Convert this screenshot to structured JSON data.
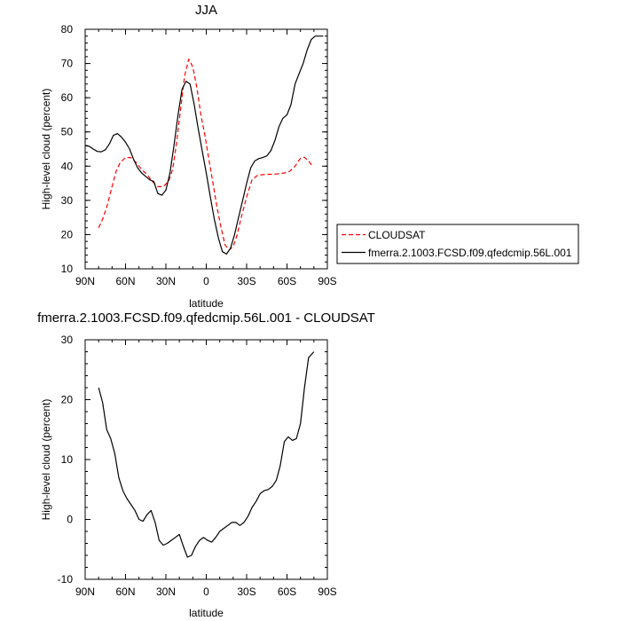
{
  "chart_data": [
    {
      "type": "line",
      "title": "JJA",
      "xlabel": "latitude",
      "ylabel": "High-level cloud (percent)",
      "xlim": [
        90,
        -90
      ],
      "ylim": [
        10,
        80
      ],
      "xticks": [
        90,
        60,
        30,
        0,
        -30,
        -60,
        -90
      ],
      "xtick_labels": [
        "90N",
        "60N",
        "30N",
        "0",
        "30S",
        "60S",
        "90S"
      ],
      "yticks": [
        10,
        20,
        30,
        40,
        50,
        60,
        70,
        80
      ],
      "ytick_labels": [
        "10",
        "20",
        "30",
        "40",
        "50",
        "60",
        "70",
        "80"
      ],
      "legend_position": "right",
      "series": [
        {
          "name": "CLOUDSAT",
          "color": "#ff0000",
          "dash": "dashed",
          "x": [
            80,
            77,
            74,
            70,
            67,
            64,
            60,
            56,
            52,
            48,
            44,
            40,
            36,
            32,
            28,
            25,
            22,
            19,
            16,
            13,
            10,
            7,
            4,
            1,
            -2,
            -5,
            -8,
            -11,
            -14,
            -17,
            -20,
            -23,
            -26,
            -30,
            -34,
            -38,
            -42,
            -46,
            -50,
            -54,
            -58,
            -62,
            -66,
            -70,
            -73,
            -76,
            -78,
            -80
          ],
          "values": [
            22,
            24.5,
            28,
            34,
            38.5,
            41,
            42.5,
            42.5,
            41,
            39,
            37.5,
            35.5,
            34,
            34,
            35.5,
            39,
            47,
            57,
            66.5,
            71.3,
            69,
            63,
            55,
            49,
            42,
            35,
            28,
            22,
            17,
            15.5,
            16.5,
            20,
            25,
            31,
            36,
            37.3,
            37.5,
            37.6,
            37.6,
            37.8,
            38,
            38.5,
            40,
            42.3,
            42.6,
            41.5,
            40.5,
            40
          ]
        },
        {
          "name": "fmerra.2.1003.FCSD.f09.qfedcmip.56L.001",
          "color": "#000000",
          "dash": "solid",
          "x": [
            90,
            87,
            84,
            81,
            78,
            75,
            72,
            69,
            66,
            63,
            60,
            57,
            54,
            51,
            48,
            45,
            42,
            39,
            36,
            33,
            30,
            27,
            24,
            21,
            18,
            15,
            12,
            9,
            6,
            3,
            0,
            -3,
            -6,
            -9,
            -12,
            -15,
            -18,
            -21,
            -24,
            -27,
            -30,
            -33,
            -36,
            -39,
            -42,
            -45,
            -48,
            -51,
            -54,
            -57,
            -60,
            -63,
            -66,
            -69,
            -72,
            -75,
            -78,
            -81,
            -84,
            -87
          ],
          "values": [
            46,
            45.8,
            45,
            44.3,
            44.2,
            44.8,
            46.5,
            49,
            49.5,
            48.5,
            47,
            45,
            42,
            39.5,
            38,
            37,
            36,
            35.5,
            32,
            31.5,
            33,
            38,
            46,
            55,
            62.5,
            64.8,
            64,
            58,
            51,
            44.5,
            38,
            31,
            24.5,
            19,
            15,
            14.3,
            16,
            20,
            25,
            30,
            35,
            39.5,
            41.5,
            42.2,
            42.5,
            43,
            44.5,
            47.5,
            51.5,
            54,
            55,
            58,
            64,
            67,
            70,
            74,
            77,
            78,
            78,
            78
          ]
        }
      ]
    },
    {
      "type": "line",
      "title": "fmerra.2.1003.FCSD.f09.qfedcmip.56L.001 - CLOUDSAT",
      "xlabel": "latitude",
      "ylabel": "High-level cloud (percent)",
      "xlim": [
        90,
        -90
      ],
      "ylim": [
        -10,
        30
      ],
      "xticks": [
        90,
        60,
        30,
        0,
        -30,
        -60,
        -90
      ],
      "xtick_labels": [
        "90N",
        "60N",
        "30N",
        "0",
        "30S",
        "60S",
        "90S"
      ],
      "yticks": [
        -10,
        0,
        10,
        20,
        30
      ],
      "ytick_labels": [
        "-10",
        "0",
        "10",
        "20",
        "30"
      ],
      "series": [
        {
          "name": "",
          "color": "#000000",
          "dash": "solid",
          "x": [
            80,
            77,
            74,
            71,
            68,
            65,
            62,
            59,
            56,
            53,
            50,
            47,
            44,
            41,
            38,
            35,
            32,
            29,
            26,
            23,
            20,
            17,
            14,
            11,
            8,
            5,
            2,
            -1,
            -4,
            -7,
            -10,
            -13,
            -16,
            -19,
            -22,
            -25,
            -28,
            -31,
            -34,
            -37,
            -40,
            -43,
            -46,
            -49,
            -52,
            -55,
            -58,
            -61,
            -64,
            -67,
            -70,
            -73,
            -76,
            -78,
            -80
          ],
          "values": [
            22,
            19.5,
            15,
            13.5,
            11,
            7,
            4.8,
            3.5,
            2.5,
            1.5,
            0,
            -0.3,
            0.8,
            1.5,
            -0.5,
            -3.5,
            -4.3,
            -4,
            -3.5,
            -3,
            -2.5,
            -4.5,
            -6.3,
            -6,
            -4.5,
            -3.5,
            -3,
            -3.5,
            -3.8,
            -3,
            -2,
            -1.5,
            -1,
            -0.5,
            -0.5,
            -1,
            -0.5,
            0.5,
            2,
            3,
            4.3,
            4.8,
            5,
            5.5,
            6.5,
            9,
            13,
            13.8,
            13.2,
            13.5,
            16,
            22,
            27,
            27.5,
            28
          ]
        }
      ]
    }
  ]
}
